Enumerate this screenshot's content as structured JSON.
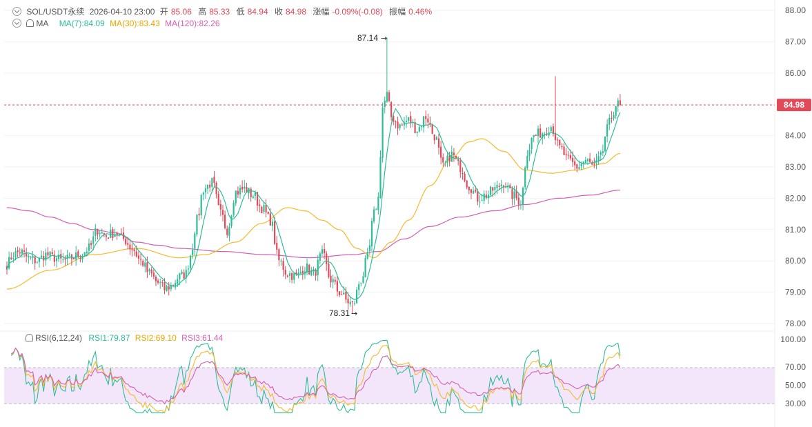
{
  "header": {
    "symbol": "SOL/USDT永续",
    "datetime": "2026-04-10 23:00",
    "open_label": "开",
    "open": "85.06",
    "high_label": "高",
    "high": "85.33",
    "low_label": "低",
    "low": "84.94",
    "close_label": "收",
    "close": "84.98",
    "change_label": "涨幅",
    "change": "-0.09%(-0.08)",
    "amp_label": "振幅",
    "amp": "0.46%"
  },
  "ma_legend": {
    "name": "MA",
    "ma7": "MA(7):84.09",
    "ma30": "MA(30):83.43",
    "ma120": "MA(120):82.26"
  },
  "rsi_legend": {
    "name": "RSI(6,12,24)",
    "rsi1": "RSI1:79.87",
    "rsi2": "RSI2:69.10",
    "rsi3": "RSI3:61.44"
  },
  "colors": {
    "up": "#2dbd96",
    "down": "#e04a59",
    "ma7": "#2dbd96",
    "ma30": "#f5b92d",
    "ma120": "#d65db1",
    "rsi1": "#2dbd96",
    "rsi2": "#f5b92d",
    "rsi3": "#d65db1",
    "rsi_band": "#f3e6fa",
    "price_line": "#e04a59"
  },
  "chart_data": {
    "type": "candlestick",
    "y_ticks": [
      "88.00",
      "87.00",
      "86.00",
      "85.00",
      "84.00",
      "83.00",
      "82.00",
      "81.00",
      "80.00",
      "79.00",
      "78.00"
    ],
    "ylim": [
      77.9,
      88.05
    ],
    "last_price": "84.98",
    "max_label": "87.14",
    "min_label": "78.31",
    "rsi_ticks": [
      "100.00",
      "70.00",
      "50.00",
      "30.00"
    ],
    "rsi_ylim": [
      20,
      100
    ],
    "rsi_band": [
      30,
      70
    ],
    "anchors": [
      [
        0,
        79.9
      ],
      [
        3,
        80.2
      ],
      [
        6,
        80.3
      ],
      [
        10,
        80.1
      ],
      [
        14,
        80.0
      ],
      [
        18,
        80.2
      ],
      [
        22,
        80.1
      ],
      [
        26,
        80.0
      ],
      [
        30,
        80.1
      ],
      [
        34,
        80.2
      ],
      [
        38,
        80.4
      ],
      [
        42,
        81.0
      ],
      [
        46,
        80.8
      ],
      [
        50,
        80.9
      ],
      [
        54,
        80.7
      ],
      [
        58,
        80.4
      ],
      [
        62,
        80.0
      ],
      [
        66,
        79.6
      ],
      [
        70,
        79.3
      ],
      [
        73,
        79.1
      ],
      [
        76,
        79.2
      ],
      [
        80,
        79.5
      ],
      [
        83,
        79.6
      ],
      [
        85,
        80.2
      ],
      [
        88,
        81.3
      ],
      [
        91,
        82.3
      ],
      [
        95,
        82.5
      ],
      [
        99,
        81.5
      ],
      [
        102,
        81.0
      ],
      [
        106,
        82.2
      ],
      [
        110,
        82.3
      ],
      [
        114,
        82.1
      ],
      [
        118,
        81.7
      ],
      [
        122,
        81.3
      ],
      [
        126,
        80.0
      ],
      [
        130,
        79.6
      ],
      [
        134,
        79.5
      ],
      [
        138,
        79.8
      ],
      [
        142,
        79.6
      ],
      [
        146,
        80.2
      ],
      [
        150,
        79.4
      ],
      [
        154,
        79.0
      ],
      [
        158,
        78.7
      ],
      [
        160,
        78.6
      ],
      [
        164,
        79.4
      ],
      [
        167,
        80.1
      ],
      [
        170,
        81.5
      ],
      [
        172,
        82.0
      ],
      [
        174,
        84.9
      ],
      [
        176,
        85.3
      ],
      [
        178,
        84.6
      ],
      [
        182,
        84.3
      ],
      [
        186,
        84.5
      ],
      [
        190,
        84.2
      ],
      [
        194,
        84.6
      ],
      [
        198,
        84.0
      ],
      [
        202,
        83.0
      ],
      [
        206,
        83.4
      ],
      [
        210,
        83.0
      ],
      [
        214,
        82.4
      ],
      [
        218,
        82.0
      ],
      [
        222,
        82.1
      ],
      [
        226,
        82.3
      ],
      [
        230,
        82.5
      ],
      [
        234,
        82.1
      ],
      [
        238,
        81.9
      ],
      [
        241,
        83.5
      ],
      [
        244,
        84.0
      ],
      [
        248,
        84.1
      ],
      [
        252,
        84.3
      ],
      [
        256,
        83.6
      ],
      [
        260,
        83.2
      ],
      [
        264,
        83.0
      ],
      [
        268,
        83.2
      ],
      [
        272,
        83.0
      ],
      [
        275,
        83.3
      ],
      [
        278,
        84.2
      ],
      [
        280,
        84.6
      ],
      [
        282,
        85.0
      ],
      [
        284,
        84.98
      ]
    ],
    "ma30_anchors": [
      [
        0,
        79.1
      ],
      [
        20,
        79.7
      ],
      [
        40,
        80.2
      ],
      [
        60,
        80.4
      ],
      [
        80,
        80.1
      ],
      [
        92,
        80.2
      ],
      [
        106,
        80.6
      ],
      [
        118,
        81.2
      ],
      [
        130,
        81.7
      ],
      [
        138,
        81.6
      ],
      [
        146,
        81.3
      ],
      [
        154,
        81.0
      ],
      [
        162,
        80.4
      ],
      [
        170,
        80.1
      ],
      [
        178,
        80.6
      ],
      [
        186,
        81.3
      ],
      [
        196,
        82.4
      ],
      [
        206,
        83.3
      ],
      [
        214,
        83.8
      ],
      [
        220,
        83.9
      ],
      [
        230,
        83.5
      ],
      [
        240,
        82.9
      ],
      [
        252,
        82.8
      ],
      [
        264,
        82.9
      ],
      [
        276,
        83.1
      ],
      [
        284,
        83.43
      ]
    ],
    "ma120_anchors": [
      [
        0,
        81.7
      ],
      [
        10,
        81.6
      ],
      [
        20,
        81.4
      ],
      [
        30,
        81.2
      ],
      [
        40,
        81.0
      ],
      [
        50,
        80.9
      ],
      [
        60,
        80.6
      ],
      [
        70,
        80.5
      ],
      [
        80,
        80.4
      ],
      [
        100,
        80.3
      ],
      [
        120,
        80.2
      ],
      [
        140,
        80.1
      ],
      [
        160,
        80.2
      ],
      [
        172,
        80.3
      ],
      [
        184,
        80.7
      ],
      [
        196,
        81.1
      ],
      [
        210,
        81.4
      ],
      [
        226,
        81.6
      ],
      [
        240,
        81.8
      ],
      [
        256,
        82.0
      ],
      [
        270,
        82.1
      ],
      [
        284,
        82.26
      ]
    ]
  }
}
